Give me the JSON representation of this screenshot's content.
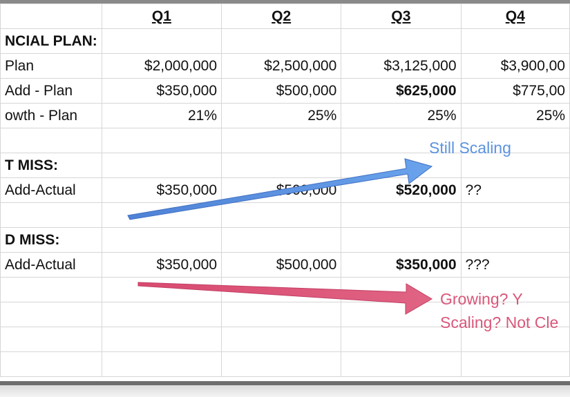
{
  "headers": [
    "",
    "Q1",
    "Q2",
    "Q3",
    "Q4"
  ],
  "rows": [
    {
      "label": "NCIAL PLAN:",
      "bold": true,
      "cells": [
        "",
        "",
        "",
        ""
      ]
    },
    {
      "label": "Plan",
      "cells": [
        "$2,000,000",
        "$2,500,000",
        "$3,125,000",
        "$3,900,00"
      ]
    },
    {
      "label": "Add - Plan",
      "cells": [
        "$350,000",
        "$500,000",
        "$625,000",
        "$775,00"
      ],
      "bold_cells": [
        2
      ]
    },
    {
      "label": "owth - Plan",
      "cells": [
        "21%",
        "25%",
        "25%",
        "25%"
      ]
    },
    {
      "label": "",
      "cells": [
        "",
        "",
        "",
        ""
      ]
    },
    {
      "label": "T MISS:",
      "bold": true,
      "cells": [
        "",
        "",
        "",
        ""
      ]
    },
    {
      "label": "Add-Actual",
      "cells": [
        "$350,000",
        "$500,000",
        "$520,000",
        ""
      ],
      "bold_cells": [
        2
      ],
      "after_q3": "??"
    },
    {
      "label": "",
      "cells": [
        "",
        "",
        "",
        ""
      ]
    },
    {
      "label": "D MISS:",
      "bold": true,
      "cells": [
        "",
        "",
        "",
        ""
      ]
    },
    {
      "label": "Add-Actual",
      "cells": [
        "$350,000",
        "$500,000",
        "$350,000",
        ""
      ],
      "bold_cells": [
        2
      ],
      "after_q3": "???"
    },
    {
      "label": "",
      "cells": [
        "",
        "",
        "",
        ""
      ]
    },
    {
      "label": "",
      "cells": [
        "",
        "",
        "",
        ""
      ]
    },
    {
      "label": "",
      "cells": [
        "",
        "",
        "",
        ""
      ]
    },
    {
      "label": "",
      "cells": [
        "",
        "",
        "",
        ""
      ]
    }
  ],
  "annotations": {
    "still_scaling": "Still Scaling",
    "growing": "Growing? Y",
    "scaling": "Scaling? Not Cle"
  },
  "colors": {
    "blue_arrow": "#5a8fe0",
    "red_arrow": "#d9577a"
  }
}
